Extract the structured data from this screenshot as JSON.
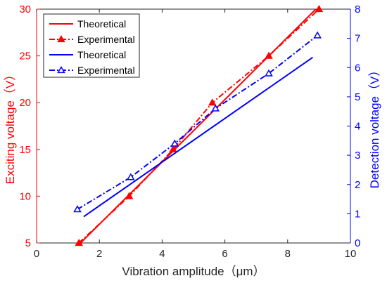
{
  "chart_data": {
    "type": "line",
    "xlabel": "Vibration amplitude（μm）",
    "ylabel_left": "Exciting voltage（V）",
    "ylabel_right": "Detection voltage（V）",
    "xlim": [
      0,
      10
    ],
    "ylim_left": [
      5,
      30
    ],
    "ylim_right": [
      0,
      8
    ],
    "xticks": [
      0,
      2,
      4,
      6,
      8,
      10
    ],
    "yticks_left": [
      5,
      10,
      15,
      20,
      25,
      30
    ],
    "yticks_right": [
      0,
      1,
      2,
      3,
      4,
      5,
      6,
      7,
      8
    ],
    "grid": false,
    "legend_position": "top-left",
    "colors": {
      "left_axis": "#ff0000",
      "right_axis": "#0000ff",
      "axes": "#262626"
    },
    "series": [
      {
        "name": "Theoretical",
        "axis": "left",
        "color": "#ff0000",
        "style": "solid",
        "marker": "none",
        "x": [
          1.4,
          8.9
        ],
        "y": [
          5,
          30
        ]
      },
      {
        "name": "Experimental",
        "axis": "left",
        "color": "#ff0000",
        "style": "dashdot",
        "marker": "triangle-filled",
        "x": [
          1.35,
          2.95,
          4.35,
          5.6,
          7.4,
          9.0
        ],
        "y": [
          5,
          10,
          15,
          20,
          25,
          30
        ]
      },
      {
        "name": "Theoretical",
        "axis": "right",
        "color": "#0000ff",
        "style": "solid",
        "marker": "none",
        "x": [
          1.5,
          8.8
        ],
        "y": [
          0.9,
          6.35
        ]
      },
      {
        "name": "Experimental",
        "axis": "right",
        "color": "#0000ff",
        "style": "dashdot",
        "marker": "triangle-open",
        "x": [
          1.3,
          3.0,
          4.4,
          5.7,
          7.4,
          8.95
        ],
        "y": [
          1.15,
          2.25,
          3.4,
          4.6,
          5.8,
          7.1
        ]
      }
    ]
  }
}
